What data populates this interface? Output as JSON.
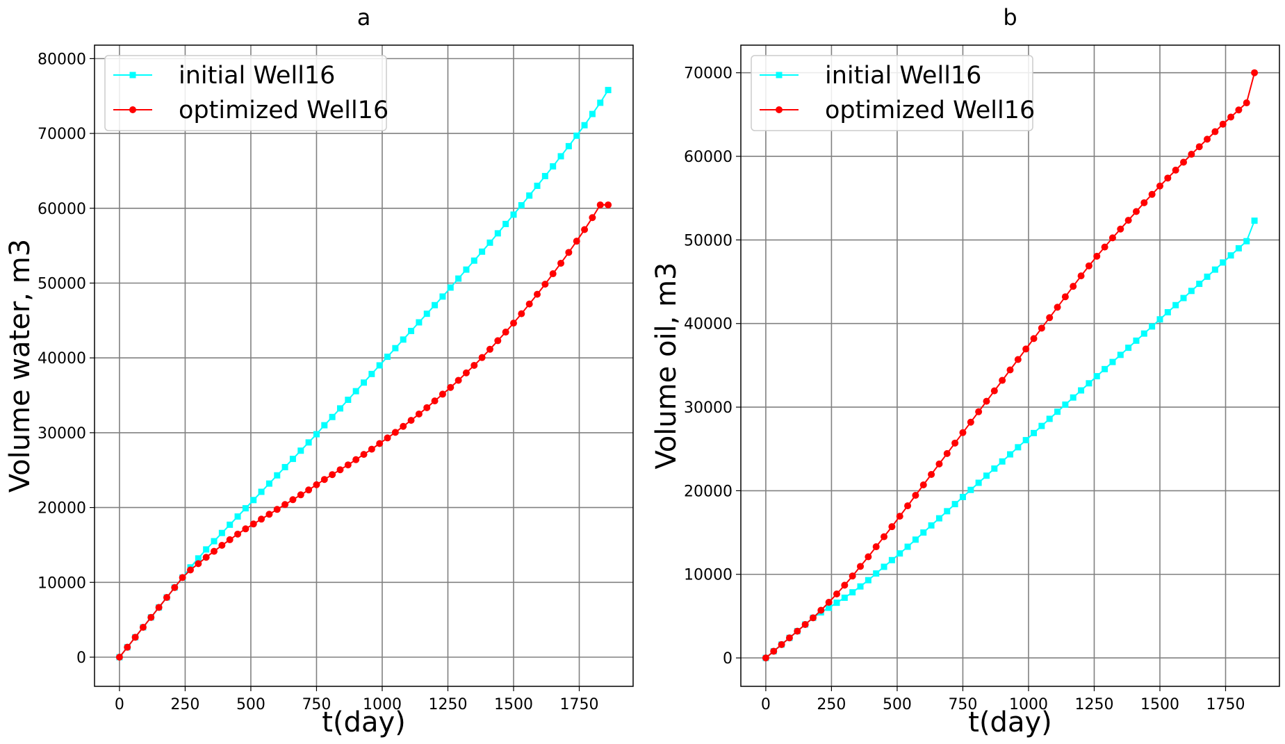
{
  "chart_data": [
    {
      "type": "line",
      "title": "a",
      "xlabel": "t(day)",
      "ylabel": "Volume water, m3",
      "xlim": [
        -95,
        1955
      ],
      "ylim": [
        -3900,
        81800
      ],
      "xticks": [
        0,
        250,
        500,
        750,
        1000,
        1250,
        1500,
        1750
      ],
      "yticks": [
        0,
        10000,
        20000,
        30000,
        40000,
        50000,
        60000,
        70000,
        80000
      ],
      "grid": true,
      "legend_position": "top-left",
      "x": [
        0,
        30,
        60,
        90,
        120,
        150,
        180,
        210,
        240,
        270,
        300,
        330,
        360,
        390,
        420,
        450,
        480,
        510,
        540,
        570,
        600,
        630,
        660,
        690,
        720,
        750,
        780,
        810,
        840,
        870,
        900,
        930,
        960,
        990,
        1020,
        1050,
        1080,
        1110,
        1140,
        1170,
        1200,
        1230,
        1260,
        1290,
        1320,
        1350,
        1380,
        1410,
        1440,
        1470,
        1500,
        1530,
        1560,
        1590,
        1620,
        1650,
        1680,
        1710,
        1740,
        1770,
        1800,
        1830,
        1860
      ],
      "series": [
        {
          "name": "initial Well16",
          "color": "#00ffff",
          "marker": "square",
          "values": [
            0,
            1330,
            2660,
            3990,
            5320,
            6650,
            7980,
            9310,
            10640,
            12000,
            13200,
            14400,
            15500,
            16600,
            17700,
            18800,
            19900,
            21000,
            22100,
            23200,
            24300,
            25400,
            26500,
            27600,
            28700,
            29800,
            31000,
            32100,
            33250,
            34400,
            35550,
            36700,
            37850,
            39000,
            40150,
            41300,
            42450,
            43600,
            44750,
            45900,
            47050,
            48200,
            49400,
            50600,
            51800,
            53000,
            54200,
            55400,
            56650,
            57900,
            59150,
            60400,
            61700,
            63000,
            64300,
            65600,
            66950,
            68300,
            69700,
            71100,
            72600,
            74100,
            75800
          ]
        },
        {
          "name": "optimized Well16",
          "color": "#ff0000",
          "marker": "circle",
          "values": [
            0,
            1330,
            2660,
            3990,
            5320,
            6650,
            7980,
            9310,
            10640,
            11650,
            12500,
            13350,
            14150,
            14950,
            15700,
            16450,
            17150,
            17800,
            18450,
            19100,
            19750,
            20400,
            21050,
            21700,
            22350,
            23050,
            23750,
            24400,
            25050,
            25700,
            26400,
            27100,
            27800,
            28550,
            29300,
            30050,
            30850,
            31650,
            32500,
            33350,
            34250,
            35150,
            36050,
            37000,
            38000,
            39000,
            40050,
            41150,
            42300,
            43450,
            44650,
            45900,
            47200,
            48500,
            49850,
            51250,
            52650,
            54100,
            55600,
            57150,
            58750,
            60450,
            60450
          ]
        }
      ]
    },
    {
      "type": "line",
      "title": "b",
      "xlabel": "t(day)",
      "ylabel": "Volume oil, m3",
      "xlim": [
        -95,
        1955
      ],
      "ylim": [
        -3400,
        73300
      ],
      "xticks": [
        0,
        250,
        500,
        750,
        1000,
        1250,
        1500,
        1750
      ],
      "yticks": [
        0,
        10000,
        20000,
        30000,
        40000,
        50000,
        60000,
        70000
      ],
      "grid": true,
      "legend_position": "top-left",
      "x": [
        0,
        30,
        60,
        90,
        120,
        150,
        180,
        210,
        240,
        270,
        300,
        330,
        360,
        390,
        420,
        450,
        480,
        510,
        540,
        570,
        600,
        630,
        660,
        690,
        720,
        750,
        780,
        810,
        840,
        870,
        900,
        930,
        960,
        990,
        1020,
        1050,
        1080,
        1110,
        1140,
        1170,
        1200,
        1230,
        1260,
        1290,
        1320,
        1350,
        1380,
        1410,
        1440,
        1470,
        1500,
        1530,
        1560,
        1590,
        1620,
        1650,
        1680,
        1710,
        1740,
        1770,
        1800,
        1830,
        1860
      ],
      "series": [
        {
          "name": "initial Well16",
          "color": "#00ffff",
          "marker": "square",
          "values": [
            0,
            800,
            1600,
            2400,
            3200,
            4000,
            4800,
            5450,
            6000,
            6600,
            7200,
            7850,
            8550,
            9300,
            10100,
            10900,
            11700,
            12500,
            13300,
            14150,
            15000,
            15850,
            16700,
            17550,
            18400,
            19250,
            20100,
            20950,
            21800,
            22650,
            23500,
            24350,
            25200,
            26050,
            26900,
            27750,
            28600,
            29450,
            30300,
            31150,
            32000,
            32850,
            33700,
            34550,
            35400,
            36250,
            37100,
            37950,
            38800,
            39650,
            40500,
            41350,
            42200,
            43050,
            43900,
            44750,
            45600,
            46450,
            47300,
            48150,
            49000,
            49850,
            52300
          ]
        },
        {
          "name": "optimized Well16",
          "color": "#ff0000",
          "marker": "circle",
          "values": [
            0,
            800,
            1600,
            2400,
            3200,
            4000,
            4800,
            5700,
            6650,
            7650,
            8700,
            9800,
            10950,
            12100,
            13300,
            14500,
            15700,
            16950,
            18200,
            19450,
            20700,
            21950,
            23200,
            24450,
            25700,
            26950,
            28200,
            29450,
            30700,
            31950,
            33200,
            34450,
            35700,
            36950,
            38200,
            39450,
            40700,
            41950,
            43200,
            44450,
            45700,
            46900,
            48050,
            49150,
            50250,
            51300,
            52350,
            53400,
            54450,
            55450,
            56450,
            57400,
            58350,
            59300,
            60250,
            61150,
            62050,
            62950,
            63850,
            64700,
            65550,
            66400,
            70000
          ]
        }
      ]
    }
  ]
}
